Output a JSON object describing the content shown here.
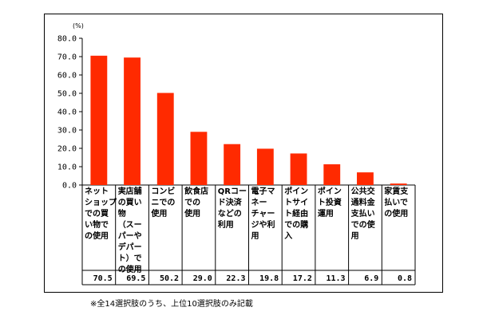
{
  "chart_data": {
    "type": "bar",
    "unit_label": "(%)",
    "categories": [
      "ネット\nショップ\nでの買\nい物で\nの使用",
      "実店舗\nの買い\n物\n（スー\nパーや\nデパー\nト）で\nの使用",
      "コンビ\nニでの\n使用",
      "飲食店\nでの\n使用",
      "QRコー\nド決済\nなどの\n利用",
      "電子マ\nネー\nチャー\nジや利\n用",
      "ポイン\nトサイ\nト経由\nでの購\n入",
      "ポイン\nト投資\n運用",
      "公共交\n通料金\n支払い\nでの使\n用",
      "家賃支\n払いで\nの使用"
    ],
    "values": [
      70.5,
      69.5,
      50.2,
      29.0,
      22.3,
      19.8,
      17.2,
      11.3,
      6.9,
      0.8
    ],
    "value_labels": [
      "70.5",
      "69.5",
      "50.2",
      "29.0",
      "22.3",
      "19.8",
      "17.2",
      "11.3",
      "6.9",
      "0.8"
    ],
    "y_ticks": [
      "0.0",
      "10.0",
      "20.0",
      "30.0",
      "40.0",
      "50.0",
      "60.0",
      "70.0",
      "80.0"
    ],
    "ylim": [
      0,
      80
    ],
    "bar_color": "#ff2a00",
    "footnote": "※全14選択肢のうち、上位10選択肢のみ記載"
  }
}
